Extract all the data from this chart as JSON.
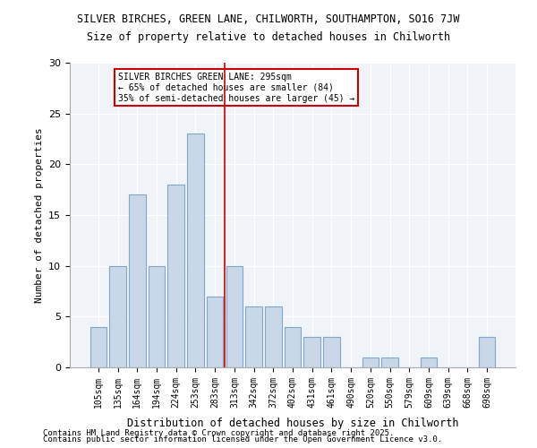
{
  "title1": "SILVER BIRCHES, GREEN LANE, CHILWORTH, SOUTHAMPTON, SO16 7JW",
  "title2": "Size of property relative to detached houses in Chilworth",
  "xlabel": "Distribution of detached houses by size in Chilworth",
  "ylabel": "Number of detached properties",
  "categories": [
    "105sqm",
    "135sqm",
    "164sqm",
    "194sqm",
    "224sqm",
    "253sqm",
    "283sqm",
    "313sqm",
    "342sqm",
    "372sqm",
    "402sqm",
    "431sqm",
    "461sqm",
    "490sqm",
    "520sqm",
    "550sqm",
    "579sqm",
    "609sqm",
    "639sqm",
    "668sqm",
    "698sqm"
  ],
  "values": [
    4,
    10,
    17,
    10,
    18,
    23,
    7,
    10,
    6,
    6,
    4,
    3,
    3,
    0,
    1,
    1,
    0,
    1,
    0,
    0,
    3
  ],
  "bar_color": "#c8d8e8",
  "bar_edge_color": "#7fa8c8",
  "vline_x": 6.5,
  "vline_color": "#cc0000",
  "annotation_line1": "SILVER BIRCHES GREEN LANE: 295sqm",
  "annotation_line2": "← 65% of detached houses are smaller (84)",
  "annotation_line3": "35% of semi-detached houses are larger (45) →",
  "annotation_box_color": "#cc0000",
  "ylim": [
    0,
    30
  ],
  "yticks": [
    0,
    5,
    10,
    15,
    20,
    25,
    30
  ],
  "background_color": "#f0f4f8",
  "footer1": "Contains HM Land Registry data © Crown copyright and database right 2025.",
  "footer2": "Contains public sector information licensed under the Open Government Licence v3.0."
}
